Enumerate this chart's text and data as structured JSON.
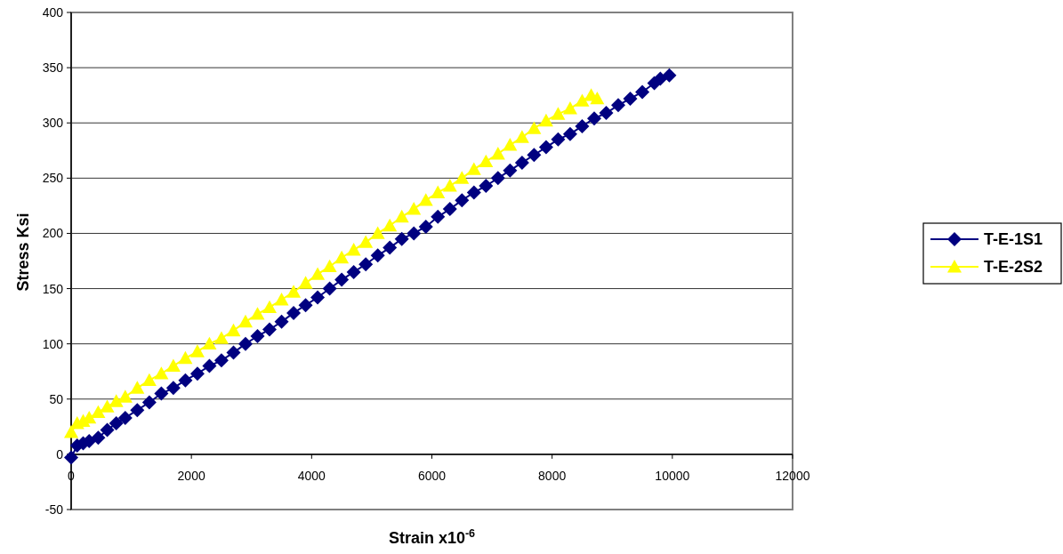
{
  "chart_data": {
    "type": "line",
    "xlabel": "Strain x10$^{-6}$",
    "ylabel": "Stress Ksi",
    "xlim": [
      0,
      12000
    ],
    "xticks": [
      0,
      2000,
      4000,
      6000,
      8000,
      10000,
      12000
    ],
    "ylim": [
      -50,
      400
    ],
    "yticks": [
      -50,
      0,
      50,
      100,
      150,
      200,
      250,
      300,
      350,
      400
    ],
    "grid": "y",
    "legend": "right",
    "series": [
      {
        "name": "T-E-1S1",
        "color": "#000080",
        "marker": "diamond",
        "x": [
          0,
          100,
          200,
          300,
          450,
          600,
          750,
          900,
          1100,
          1300,
          1500,
          1700,
          1900,
          2100,
          2300,
          2500,
          2700,
          2900,
          3100,
          3300,
          3500,
          3700,
          3900,
          4100,
          4300,
          4500,
          4700,
          4900,
          5100,
          5300,
          5500,
          5700,
          5900,
          6100,
          6300,
          6500,
          6700,
          6900,
          7100,
          7300,
          7500,
          7700,
          7900,
          8100,
          8300,
          8500,
          8700,
          8900,
          9100,
          9300,
          9500,
          9700,
          9800,
          9950
        ],
        "values": [
          -3,
          8,
          10,
          12,
          15,
          22,
          28,
          33,
          40,
          47,
          55,
          60,
          67,
          73,
          80,
          85,
          92,
          100,
          107,
          113,
          120,
          128,
          135,
          142,
          150,
          158,
          165,
          172,
          180,
          187,
          195,
          200,
          206,
          215,
          222,
          230,
          237,
          243,
          250,
          257,
          264,
          271,
          278,
          285,
          290,
          297,
          304,
          309,
          316,
          322,
          328,
          336,
          340,
          343
        ]
      },
      {
        "name": "T-E-2S2",
        "color": "#ffff00",
        "marker": "triangle",
        "x": [
          0,
          100,
          200,
          300,
          450,
          600,
          750,
          900,
          1100,
          1300,
          1500,
          1700,
          1900,
          2100,
          2300,
          2500,
          2700,
          2900,
          3100,
          3300,
          3500,
          3700,
          3900,
          4100,
          4300,
          4500,
          4700,
          4900,
          5100,
          5300,
          5500,
          5700,
          5900,
          6100,
          6300,
          6500,
          6700,
          6900,
          7100,
          7300,
          7500,
          7700,
          7900,
          8100,
          8300,
          8500,
          8650,
          8750
        ],
        "values": [
          20,
          28,
          30,
          33,
          38,
          43,
          48,
          52,
          60,
          67,
          73,
          80,
          87,
          93,
          100,
          105,
          112,
          120,
          127,
          133,
          140,
          147,
          155,
          163,
          170,
          178,
          185,
          192,
          200,
          207,
          215,
          222,
          230,
          237,
          243,
          250,
          258,
          265,
          272,
          280,
          287,
          295,
          302,
          308,
          313,
          320,
          325,
          322
        ]
      }
    ]
  }
}
